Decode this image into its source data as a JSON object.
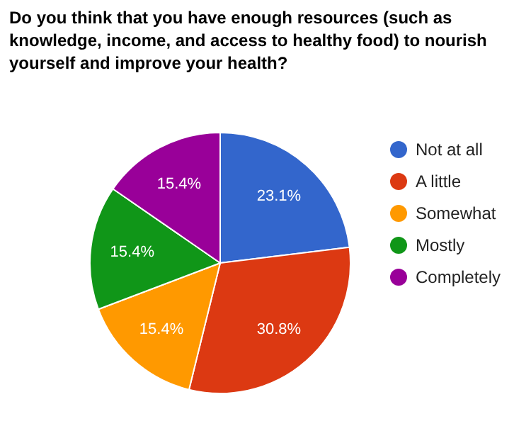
{
  "chart_data": {
    "type": "pie",
    "title": "Do you think that you have enough resources (such as knowledge, income, and access to healthy food) to nourish yourself and improve your health?",
    "categories": [
      "Not at all",
      "A little",
      "Somewhat",
      "Mostly",
      "Completely"
    ],
    "values": [
      23.1,
      30.8,
      15.4,
      15.4,
      15.4
    ],
    "colors": [
      "#3366cc",
      "#dc3912",
      "#ff9900",
      "#109618",
      "#990099"
    ],
    "value_labels": [
      "23.1%",
      "30.8%",
      "15.4%",
      "15.4%",
      "15.4%"
    ],
    "legend": "right"
  }
}
